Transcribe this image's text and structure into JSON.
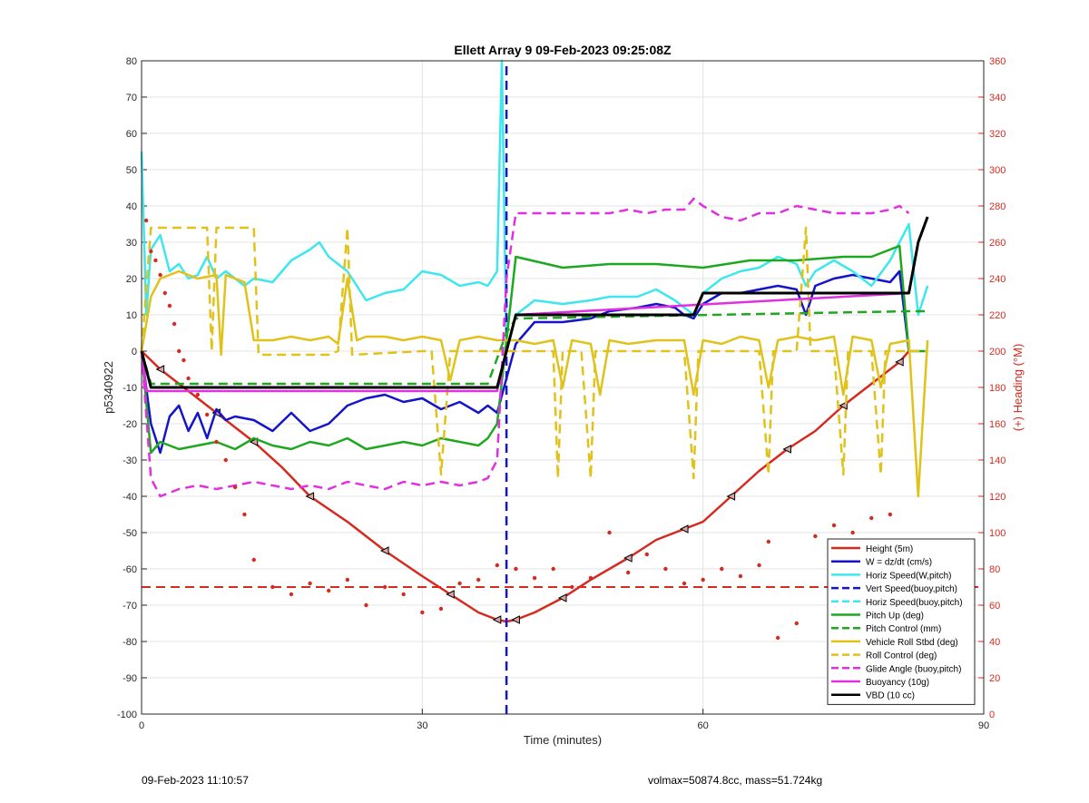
{
  "chart_data": {
    "type": "line",
    "title": "Ellett Array 9 09-Feb-2023 09:25:08Z",
    "xlabel": "Time (minutes)",
    "ylabel": "p5340922",
    "y2label": "(+) Heading (°M)",
    "xlim": [
      0,
      90
    ],
    "ylim": [
      -100,
      80
    ],
    "y2lim": [
      0,
      360
    ],
    "xticks": [
      "0",
      "30",
      "60",
      "90"
    ],
    "yticks": [
      "80",
      "70",
      "60",
      "50",
      "40",
      "30",
      "20",
      "10",
      "0",
      "-10",
      "-20",
      "-30",
      "-40",
      "-50",
      "-60",
      "-70",
      "-80",
      "-90",
      "-100"
    ],
    "y2ticks": [
      "360",
      "340",
      "320",
      "300",
      "280",
      "260",
      "240",
      "220",
      "200",
      "180",
      "160",
      "140",
      "120",
      "100",
      "80",
      "60",
      "40",
      "20",
      "0"
    ],
    "grid": true,
    "legend_position": "bottom-right",
    "colors": {
      "red": "#d62a1f",
      "blue": "#1414c8",
      "cyan": "#3ee6ee",
      "green": "#1fa81f",
      "yellow": "#e0c21a",
      "magenta": "#e030e0",
      "black": "#000000",
      "axis_right": "#d62a1f"
    },
    "series": [
      {
        "name": "Height (5m)",
        "color": "#d62a1f",
        "style": "solid",
        "x": [
          0,
          2,
          5,
          8,
          10,
          12,
          15,
          18,
          22,
          26,
          30,
          33,
          36,
          38,
          39,
          40,
          42,
          45,
          48,
          52,
          55,
          58,
          60,
          63,
          66,
          69,
          72,
          75,
          78,
          81,
          82
        ],
        "y": [
          0,
          -5,
          -11,
          -17,
          -21,
          -25,
          -32,
          -40,
          -47,
          -55,
          -62,
          -67,
          -72,
          -74,
          -74.5,
          -74,
          -72,
          -68,
          -63,
          -57,
          -52,
          -49,
          -47,
          -40,
          -33,
          -27,
          -22,
          -15,
          -9,
          -3,
          0
        ]
      },
      {
        "name": "W = dz/dt (cm/s)",
        "color": "#1414c8",
        "style": "solid",
        "x": [
          0,
          1,
          2,
          3,
          4,
          5,
          6,
          7,
          8,
          9,
          10,
          12,
          14,
          16,
          18,
          20,
          22,
          24,
          26,
          28,
          30,
          32,
          34,
          36,
          37,
          38,
          40,
          42,
          45,
          48,
          50,
          53,
          55,
          57,
          58,
          59,
          60,
          62,
          64,
          66,
          68,
          70,
          71,
          72,
          74,
          76,
          78,
          80,
          81,
          82
        ],
        "y": [
          0,
          -20,
          -28,
          -18,
          -15,
          -22,
          -17,
          -24,
          -16,
          -19,
          -18,
          -19,
          -22,
          -17,
          -22,
          -20,
          -15,
          -13,
          -12,
          -14,
          -13,
          -16,
          -14,
          -17,
          -15,
          -17,
          2,
          8,
          8,
          9,
          11,
          12,
          13,
          12,
          10,
          9,
          13,
          16,
          16,
          17,
          18,
          17,
          10,
          18,
          20,
          21,
          20,
          19,
          22,
          0
        ]
      },
      {
        "name": "Horiz Speed(W,pitch)",
        "color": "#3ee6ee",
        "style": "solid",
        "x": [
          0,
          0.5,
          1,
          2,
          3,
          4,
          5,
          6,
          7,
          8,
          9,
          10,
          11,
          12,
          14,
          16,
          18,
          19,
          20,
          22,
          23,
          24,
          26,
          28,
          30,
          32,
          34,
          36,
          37,
          38,
          38.5,
          39,
          40,
          42,
          45,
          48,
          50,
          53,
          55,
          57,
          58,
          59,
          60,
          62,
          64,
          66,
          68,
          70,
          71,
          72,
          74,
          76,
          78,
          80,
          81,
          82,
          83,
          84
        ],
        "y": [
          55,
          10,
          28,
          32,
          22,
          24,
          20,
          21,
          26,
          20,
          22,
          20,
          18,
          20,
          19,
          25,
          28,
          30,
          26,
          22,
          18,
          14,
          16,
          17,
          22,
          21,
          18,
          19,
          18,
          22,
          80,
          0,
          10,
          14,
          13,
          14,
          15,
          15,
          17,
          14,
          12,
          10,
          16,
          20,
          22,
          23,
          26,
          24,
          18,
          22,
          25,
          22,
          18,
          25,
          30,
          35,
          10,
          18
        ]
      },
      {
        "name": "Vert Speed(buoy,pitch)",
        "color": "#1414c8",
        "style": "dashed",
        "x": [
          39,
          39
        ],
        "y": [
          -100,
          80
        ]
      },
      {
        "name": "Horiz Speed(buoy,pitch)",
        "color": "#3ee6ee",
        "style": "dashed",
        "x": [],
        "y": []
      },
      {
        "name": "Pitch Up (deg)",
        "color": "#1fa81f",
        "style": "solid",
        "x": [
          0,
          1,
          2,
          4,
          6,
          8,
          10,
          12,
          14,
          16,
          18,
          20,
          22,
          24,
          26,
          28,
          30,
          32,
          34,
          36,
          37,
          38,
          40,
          45,
          50,
          55,
          60,
          65,
          70,
          75,
          78,
          80,
          81,
          82,
          84
        ],
        "y": [
          0,
          -28,
          -25,
          -27,
          -26,
          -25,
          -27,
          -24,
          -26,
          -27,
          -25,
          -26,
          -24,
          -27,
          -26,
          -25,
          -26,
          -24,
          -25,
          -26,
          -24,
          -20,
          26,
          23,
          24,
          24,
          23,
          25,
          25,
          26,
          26,
          28,
          29,
          0,
          0
        ]
      },
      {
        "name": "Pitch Control (mm)",
        "color": "#1fa81f",
        "style": "dashed",
        "x": [
          0,
          1,
          37,
          39,
          40,
          82,
          84
        ],
        "y": [
          0,
          -9,
          -9,
          5,
          9,
          11,
          11
        ]
      },
      {
        "name": "Vehicle Roll Stbd (deg)",
        "color": "#e0c21a",
        "style": "solid",
        "x": [
          0,
          1,
          2,
          4,
          6,
          8,
          8.5,
          9,
          10,
          11,
          12,
          14,
          16,
          18,
          20,
          21,
          22,
          23,
          24,
          26,
          28,
          30,
          32,
          33,
          34,
          36,
          38,
          40,
          42,
          44,
          45,
          46,
          48,
          49,
          50,
          52,
          55,
          58,
          59,
          60,
          62,
          64,
          66,
          67,
          68,
          70,
          72,
          74,
          75,
          76,
          78,
          79,
          80,
          82,
          83,
          84
        ],
        "y": [
          0,
          15,
          20,
          22,
          20,
          21,
          -1,
          21,
          20,
          19,
          3,
          3,
          4,
          3,
          4,
          2,
          20,
          3,
          4,
          4,
          3,
          4,
          3,
          -8,
          3,
          4,
          3,
          3,
          2,
          3,
          -10,
          3,
          2,
          -12,
          3,
          2,
          3,
          3,
          -12,
          3,
          2,
          4,
          3,
          -10,
          3,
          4,
          3,
          4,
          -12,
          4,
          3,
          -10,
          2,
          3,
          -40,
          3
        ]
      },
      {
        "name": "Roll Control (deg)",
        "color": "#e0c21a",
        "style": "dashed",
        "x": [
          0,
          1,
          1.5,
          7,
          7.5,
          8,
          9,
          9.5,
          12,
          12.5,
          20,
          21,
          22,
          22.5,
          30,
          31,
          32,
          33,
          34,
          42,
          44,
          44.5,
          45,
          47,
          48,
          48.5,
          49,
          58,
          59,
          59.5,
          60,
          66,
          67,
          67.5,
          68,
          70,
          71,
          71.5,
          72,
          74,
          75,
          75.5,
          76,
          78,
          79,
          79.5,
          80,
          84
        ],
        "y": [
          0,
          34,
          34,
          34,
          0,
          34,
          34,
          34,
          34,
          -1,
          -1,
          0,
          34,
          -1,
          0,
          0,
          -34,
          0,
          0,
          0,
          0,
          -35,
          0,
          0,
          -35,
          0,
          0,
          0,
          -35,
          0,
          0,
          0,
          -34,
          0,
          0,
          0,
          34,
          0,
          0,
          0,
          -34,
          0,
          0,
          0,
          -34,
          0,
          0,
          0
        ]
      },
      {
        "name": "Glide Angle (buoy,pitch)",
        "color": "#e030e0",
        "style": "dashed",
        "x": [
          0,
          1,
          2,
          4,
          6,
          8,
          10,
          12,
          14,
          16,
          18,
          20,
          22,
          24,
          26,
          28,
          30,
          32,
          34,
          36,
          37,
          38,
          39,
          40,
          42,
          44,
          46,
          48,
          50,
          52,
          54,
          56,
          58,
          59,
          60,
          62,
          64,
          66,
          68,
          70,
          72,
          74,
          76,
          78,
          80,
          81,
          82
        ],
        "y": [
          0,
          -35,
          -40,
          -38,
          -37,
          -38,
          -37,
          -36,
          -37,
          -38,
          -37,
          -38,
          -36,
          -37,
          -38,
          -36,
          -37,
          -36,
          -37,
          -36,
          -35,
          -30,
          20,
          38,
          38,
          38,
          38,
          38,
          38,
          39,
          38,
          39,
          39,
          42,
          40,
          37,
          36,
          38,
          38,
          40,
          39,
          38,
          38,
          38,
          39,
          40,
          38
        ]
      },
      {
        "name": "Buoyancy (10g)",
        "color": "#e030e0",
        "style": "solid",
        "x": [
          0,
          0.5,
          37,
          38,
          39,
          40,
          82
        ],
        "y": [
          0,
          -11,
          -11,
          -11,
          0,
          10,
          16
        ]
      },
      {
        "name": "VBD (10 cc)",
        "color": "#000000",
        "style": "solid",
        "x": [
          0,
          1,
          37,
          38,
          39,
          40,
          58,
          59,
          60,
          82,
          83,
          84
        ],
        "y": [
          0,
          -10,
          -10,
          -10,
          0,
          10,
          10,
          10,
          16,
          16,
          30,
          37
        ]
      }
    ],
    "heading": {
      "name": "(+) Heading (°M)",
      "color": "#d62a1f",
      "x": [
        0.5,
        1,
        1.5,
        2,
        2.5,
        3,
        3.5,
        4,
        4.5,
        5,
        6,
        7,
        8,
        9,
        10,
        11,
        12,
        14,
        16,
        18,
        20,
        22,
        24,
        26,
        28,
        30,
        32,
        34,
        36,
        38,
        40,
        42,
        44,
        46,
        48,
        50,
        52,
        54,
        56,
        58,
        60,
        62,
        64,
        66,
        67,
        68,
        70,
        72,
        74,
        76,
        78,
        80,
        82
      ],
      "y": [
        272,
        255,
        250,
        242,
        232,
        225,
        215,
        200,
        195,
        185,
        176,
        165,
        150,
        140,
        125,
        110,
        85,
        70,
        66,
        72,
        68,
        74,
        60,
        70,
        66,
        56,
        58,
        72,
        74,
        82,
        80,
        75,
        80,
        70,
        75,
        100,
        78,
        88,
        80,
        72,
        74,
        80,
        76,
        82,
        95,
        42,
        50,
        98,
        104,
        100,
        108,
        110,
        92
      ]
    },
    "reference_line": {
      "name": "",
      "y": -65,
      "color": "#d62a1f",
      "style": "dashed"
    }
  },
  "footer": {
    "timestamp": "09-Feb-2023 11:10:57",
    "info": "volmax=50874.8cc, mass=51.724kg"
  }
}
